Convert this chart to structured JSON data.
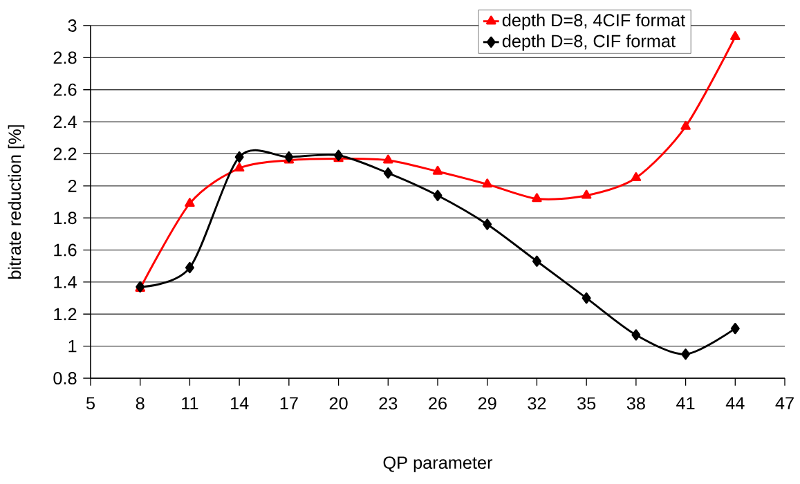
{
  "chart_data": {
    "type": "line",
    "xlabel": "QP parameter",
    "ylabel": "bitrate reduction [%]",
    "x": [
      8,
      11,
      14,
      17,
      20,
      23,
      26,
      29,
      32,
      35,
      38,
      41,
      44
    ],
    "series": [
      {
        "name": "depth D=8, 4CIF format",
        "color": "#ff0000",
        "marker": "triangle",
        "values": [
          1.36,
          1.89,
          2.11,
          2.16,
          2.17,
          2.16,
          2.09,
          2.01,
          1.92,
          1.94,
          2.05,
          2.37,
          2.93
        ]
      },
      {
        "name": "depth D=8, CIF format",
        "color": "#000000",
        "marker": "diamond",
        "values": [
          1.37,
          1.49,
          2.18,
          2.18,
          2.19,
          2.08,
          1.94,
          1.76,
          1.53,
          1.3,
          1.07,
          0.95,
          1.11
        ]
      }
    ],
    "xlim": [
      5,
      47
    ],
    "xticks": [
      5,
      8,
      11,
      14,
      17,
      20,
      23,
      26,
      29,
      32,
      35,
      38,
      41,
      44,
      47
    ],
    "ylim": [
      0.8,
      3
    ],
    "yticks": [
      0.8,
      1,
      1.2,
      1.4,
      1.6,
      1.8,
      2,
      2.2,
      2.4,
      2.6,
      2.8,
      3
    ],
    "grid": "y",
    "legend": "top right",
    "line_style": "solid"
  }
}
